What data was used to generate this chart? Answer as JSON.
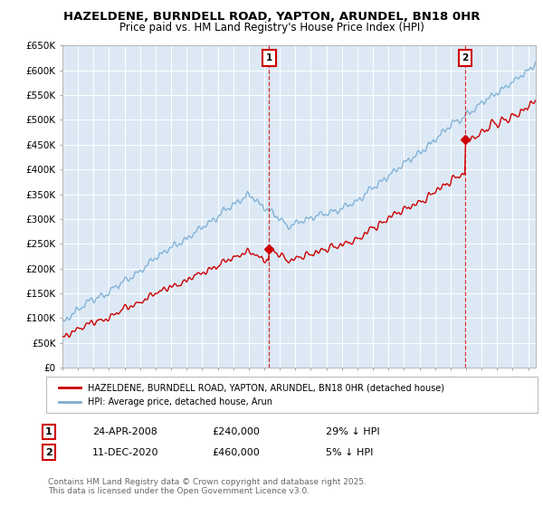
{
  "title": "HAZELDENE, BURNDELL ROAD, YAPTON, ARUNDEL, BN18 0HR",
  "subtitle": "Price paid vs. HM Land Registry's House Price Index (HPI)",
  "bg_color": "#dce9f5",
  "fig_bg": "#ffffff",
  "ylim": [
    0,
    650000
  ],
  "yticks": [
    0,
    50000,
    100000,
    150000,
    200000,
    250000,
    300000,
    350000,
    400000,
    450000,
    500000,
    550000,
    600000,
    650000
  ],
  "ytick_labels": [
    "£0",
    "£50K",
    "£100K",
    "£150K",
    "£200K",
    "£250K",
    "£300K",
    "£350K",
    "£400K",
    "£450K",
    "£500K",
    "£550K",
    "£600K",
    "£650K"
  ],
  "purchase1_date": 2008.31,
  "purchase1_price": 240000,
  "purchase2_date": 2020.95,
  "purchase2_price": 460000,
  "line_red": "#cc0000",
  "line_blue": "#7aadd4",
  "note_label1": "24-APR-2008",
  "note_price1": "£240,000",
  "note_pct1": "29% ↓ HPI",
  "note_label2": "11-DEC-2020",
  "note_price2": "£460,000",
  "note_pct2": "5% ↓ HPI",
  "footer": "Contains HM Land Registry data © Crown copyright and database right 2025.\nThis data is licensed under the Open Government Licence v3.0.",
  "legend_red": "HAZELDENE, BURNDELL ROAD, YAPTON, ARUNDEL, BN18 0HR (detached house)",
  "legend_blue": "HPI: Average price, detached house, Arun",
  "xmin": 1995.0,
  "xmax": 2025.5
}
